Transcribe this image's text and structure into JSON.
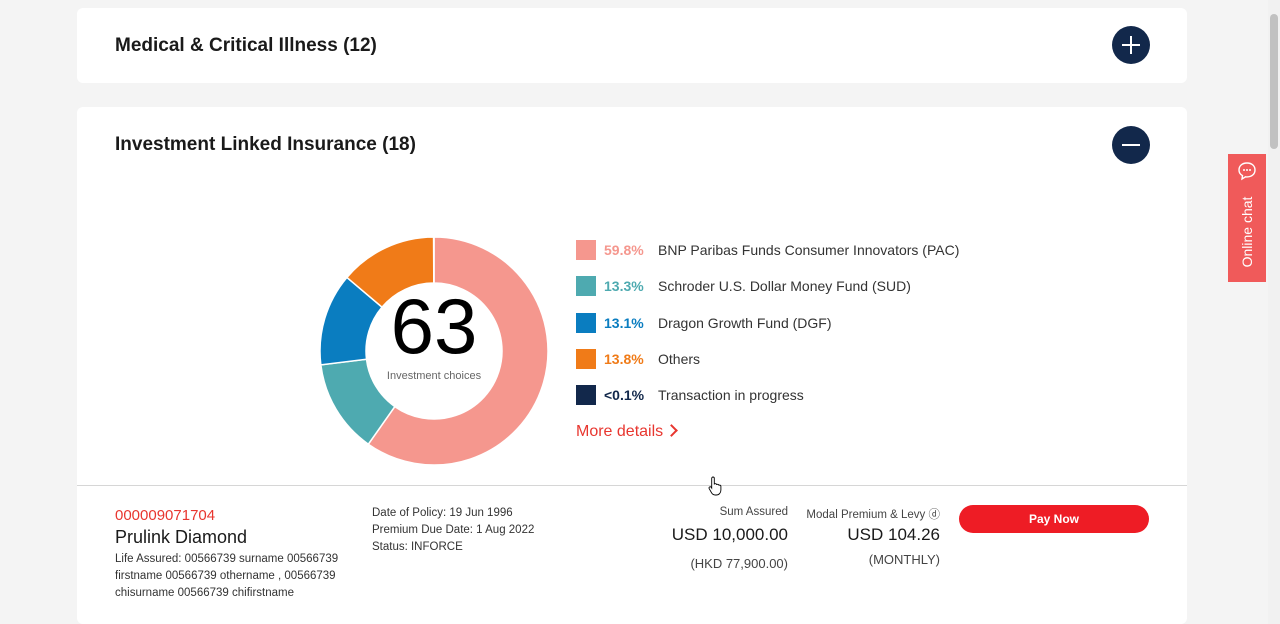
{
  "sections": {
    "medical": {
      "title": "Medical & Critical Illness (12)",
      "toggle_icon": "plus-icon"
    },
    "investment": {
      "title": "Investment Linked Insurance (18)",
      "toggle_icon": "minus-icon"
    }
  },
  "allocation": {
    "total": "63",
    "total_label": "Investment choices",
    "legend": [
      {
        "pct": "59.8%",
        "name": "BNP Paribas Funds Consumer Innovators (PAC)",
        "color": "#f5978e",
        "value": 59.8
      },
      {
        "pct": "13.3%",
        "name": "Schroder U.S. Dollar Money Fund (SUD)",
        "color": "#4eaab0",
        "value": 13.3
      },
      {
        "pct": "13.1%",
        "name": "Dragon Growth Fund (DGF)",
        "color": "#0a7dc0",
        "value": 13.1
      },
      {
        "pct": "13.8%",
        "name": "Others",
        "color": "#f07b18",
        "value": 13.8
      },
      {
        "pct": "<0.1%",
        "name": "Transaction in progress",
        "color": "#12284b",
        "value": 0.05
      }
    ],
    "more_details": "More details"
  },
  "policy": {
    "number": "000009071704",
    "product": "Prulink Diamond",
    "life_assured": "Life Assured: 00566739 surname 00566739 firstname 00566739 othername , 00566739 chisurname 00566739 chifirstname",
    "date_of_policy": "Date of Policy: 19 Jun 1996",
    "premium_due": "Premium Due Date: 1 Aug 2022",
    "status": "Status: INFORCE",
    "sum_assured_label": "Sum Assured",
    "sum_assured_value": "USD 10,000.00",
    "sum_assured_hkd": "(HKD 77,900.00)",
    "premium_label": "Modal Premium & Levy ⓓ",
    "premium_value": "USD 104.26",
    "premium_freq": "(MONTHLY)",
    "pay_now": "Pay Now"
  },
  "online_chat": {
    "label": "Online chat",
    "icon": "chat-bubble-icon"
  }
}
